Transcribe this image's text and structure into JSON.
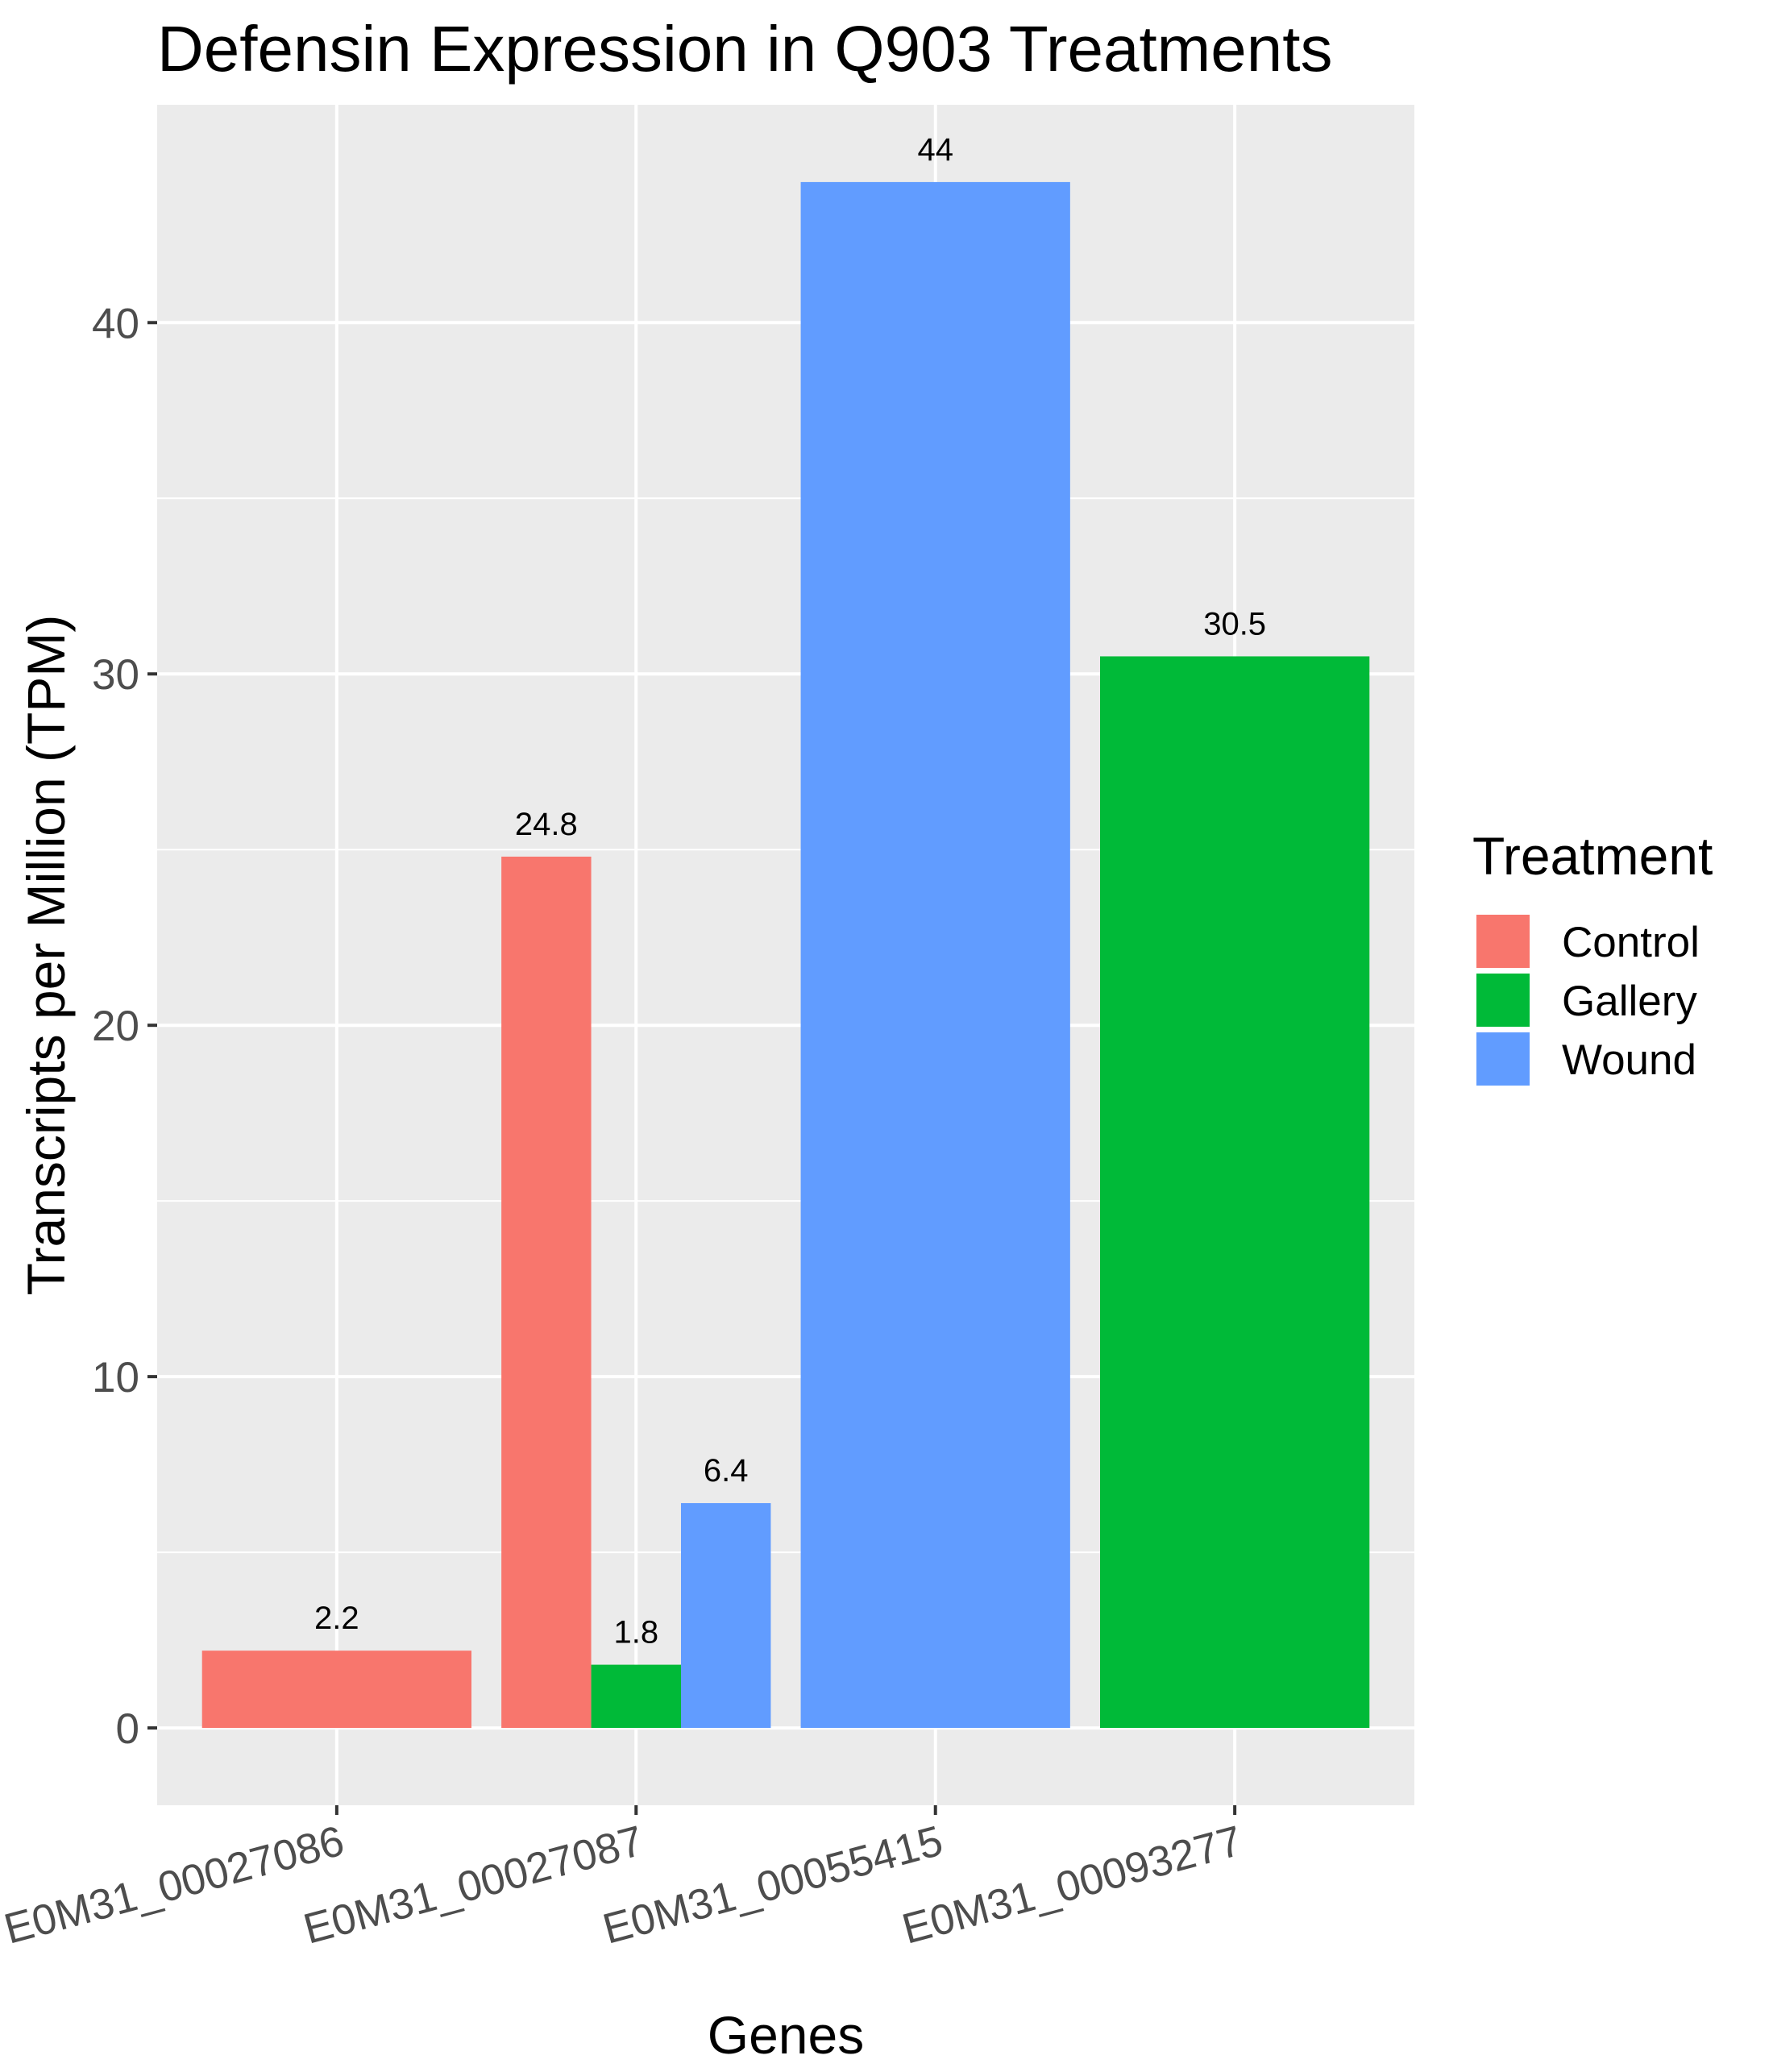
{
  "chart_data": {
    "type": "bar",
    "title": "Defensin Expression in Q903 Treatments",
    "xlabel": "Genes",
    "ylabel": "Transcripts per Million (TPM)",
    "ylim": [
      -2.2,
      46.2
    ],
    "yticks": [
      0,
      10,
      20,
      30,
      40
    ],
    "ytick_labels": [
      "0",
      "10",
      "20",
      "30",
      "40"
    ],
    "grid": true,
    "legend": {
      "title": "Treatment",
      "position": "right",
      "entries": [
        {
          "name": "Control",
          "color": "#F8766D"
        },
        {
          "name": "Gallery",
          "color": "#00BA38"
        },
        {
          "name": "Wound",
          "color": "#619CFF"
        }
      ]
    },
    "categories": [
      "E0M31_00027086",
      "E0M31_00027087",
      "E0M31_00055415",
      "E0M31_00093277"
    ],
    "bars": [
      {
        "category": "E0M31_00027086",
        "treatment": "Control",
        "value": 2.2,
        "label": "2.2"
      },
      {
        "category": "E0M31_00027087",
        "treatment": "Control",
        "value": 24.8,
        "label": "24.8"
      },
      {
        "category": "E0M31_00027087",
        "treatment": "Gallery",
        "value": 1.8,
        "label": "1.8"
      },
      {
        "category": "E0M31_00027087",
        "treatment": "Wound",
        "value": 6.4,
        "label": "6.4"
      },
      {
        "category": "E0M31_00055415",
        "treatment": "Wound",
        "value": 44,
        "label": "44"
      },
      {
        "category": "E0M31_00093277",
        "treatment": "Gallery",
        "value": 30.5,
        "label": "30.5"
      }
    ]
  }
}
